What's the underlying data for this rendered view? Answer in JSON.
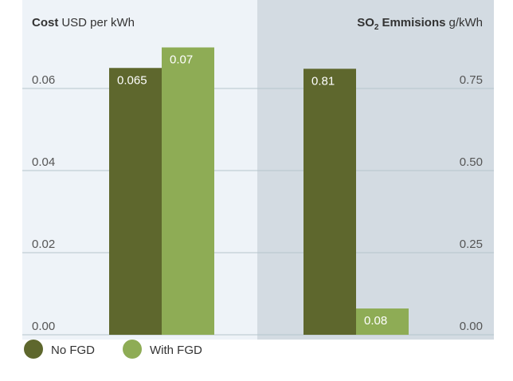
{
  "chart_data": [
    {
      "type": "bar",
      "title": "Cost",
      "unit": "USD per kWh",
      "axis_side": "left",
      "background": "#eef3f8",
      "ylim": [
        0,
        0.08
      ],
      "yticks": [
        {
          "value": 0,
          "label": "0.00"
        },
        {
          "value": 0.02,
          "label": "0.02"
        },
        {
          "value": 0.04,
          "label": "0.04"
        },
        {
          "value": 0.06,
          "label": "0.06"
        }
      ],
      "grid": true,
      "series": [
        {
          "name": "No FGD",
          "color": "#5e672d",
          "values": [
            0.065
          ]
        },
        {
          "name": "With FGD",
          "color": "#8eac55",
          "values": [
            0.07
          ]
        }
      ]
    },
    {
      "type": "bar",
      "title_prefix": "SO",
      "title_sub": "2",
      "title": "Emmisions",
      "unit": "g/kWh",
      "axis_side": "right",
      "background": "#d3dbe2",
      "ylim": [
        0,
        1
      ],
      "yticks": [
        {
          "value": 0,
          "label": "0.00"
        },
        {
          "value": 0.25,
          "label": "0.25"
        },
        {
          "value": 0.5,
          "label": "0.50"
        },
        {
          "value": 0.75,
          "label": "0.75"
        }
      ],
      "grid": true,
      "series": [
        {
          "color": "#5e672d",
          "values": [
            0.81
          ]
        },
        {
          "color": "#8eac55",
          "values": [
            0.08
          ]
        }
      ]
    }
  ]
}
